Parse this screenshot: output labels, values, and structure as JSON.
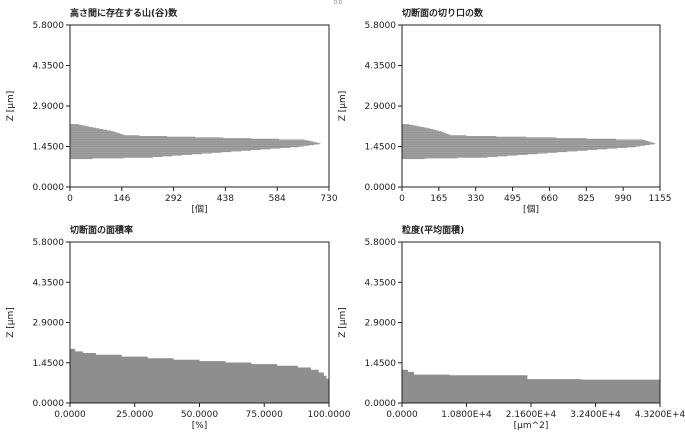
{
  "page": {
    "stray_mark": "0.0"
  },
  "chart_data": [
    {
      "type": "bar",
      "orientation": "horizontal-histogram",
      "title": "高さ間に存在する山(谷)数",
      "xlabel": "[個]",
      "ylabel": "Z [µm]",
      "xlim": [
        0,
        730
      ],
      "ylim": [
        0,
        5.8
      ],
      "xticks": [
        "0",
        "146",
        "292",
        "438",
        "584",
        "730"
      ],
      "yticks": [
        "0.0000",
        "1.4500",
        "2.9000",
        "4.3500",
        "5.8000"
      ],
      "grid": false,
      "profile": {
        "z": [
          1.0,
          1.55,
          2.0,
          2.25
        ],
        "x": [
          [
            20,
            10,
            40
          ],
          [
            640,
            710,
            660
          ],
          [
            120,
            30,
            70
          ],
          [
            20,
            10,
            5
          ]
        ]
      }
    },
    {
      "type": "bar",
      "orientation": "horizontal-histogram",
      "title": "切断面の切り口の数",
      "xlabel": "[個]",
      "ylabel": "Z [µm]",
      "xlim": [
        0,
        1155
      ],
      "ylim": [
        0,
        5.8
      ],
      "xticks": [
        "0",
        "165",
        "330",
        "495",
        "660",
        "825",
        "990",
        "1155"
      ],
      "yticks": [
        "0.0000",
        "1.4500",
        "2.9000",
        "4.3500",
        "5.8000"
      ],
      "grid": false,
      "profile": {
        "z": [
          1.0,
          1.55,
          2.0,
          2.25
        ],
        "x": [
          [
            30,
            10,
            60
          ],
          [
            1040,
            1140,
            1080
          ],
          [
            170,
            40,
            110
          ],
          [
            25,
            10,
            5
          ]
        ]
      }
    },
    {
      "type": "area",
      "orientation": "horizontal-step",
      "title": "切断面の面積率",
      "xlabel": "[%]",
      "ylabel": "Z [µm]",
      "xlim": [
        0,
        100
      ],
      "ylim": [
        0,
        5.8
      ],
      "xticks": [
        "0.0000",
        "25.0000",
        "50.0000",
        "75.0000",
        "100.0000"
      ],
      "yticks": [
        "0.0000",
        "1.4500",
        "2.9000",
        "4.3500",
        "5.8000"
      ],
      "grid": false,
      "x": [
        0,
        2,
        5,
        10,
        20,
        30,
        40,
        50,
        60,
        70,
        80,
        88,
        93,
        96,
        98,
        99,
        100
      ],
      "y": [
        1.95,
        1.86,
        1.8,
        1.74,
        1.67,
        1.61,
        1.56,
        1.51,
        1.46,
        1.4,
        1.34,
        1.28,
        1.2,
        1.1,
        0.98,
        0.88,
        0.72
      ]
    },
    {
      "type": "area",
      "orientation": "horizontal-step",
      "title": "粒度(平均面積)",
      "xlabel": "[µm^2]",
      "ylabel": "Z [µm]",
      "xlim": [
        0,
        43200
      ],
      "ylim": [
        0,
        5.8
      ],
      "xticks": [
        "0.0000",
        "1.0800E+4",
        "2.1600E+4",
        "3.2400E+4",
        "4.3200E+4"
      ],
      "yticks": [
        "0.0000",
        "1.4500",
        "2.9000",
        "4.3500",
        "5.8000"
      ],
      "grid": false,
      "x": [
        0,
        1000,
        2000,
        8000,
        15000,
        21000,
        30000,
        43200
      ],
      "y": [
        1.2,
        1.12,
        1.02,
        1.0,
        1.0,
        0.86,
        0.84,
        0.84
      ]
    }
  ]
}
